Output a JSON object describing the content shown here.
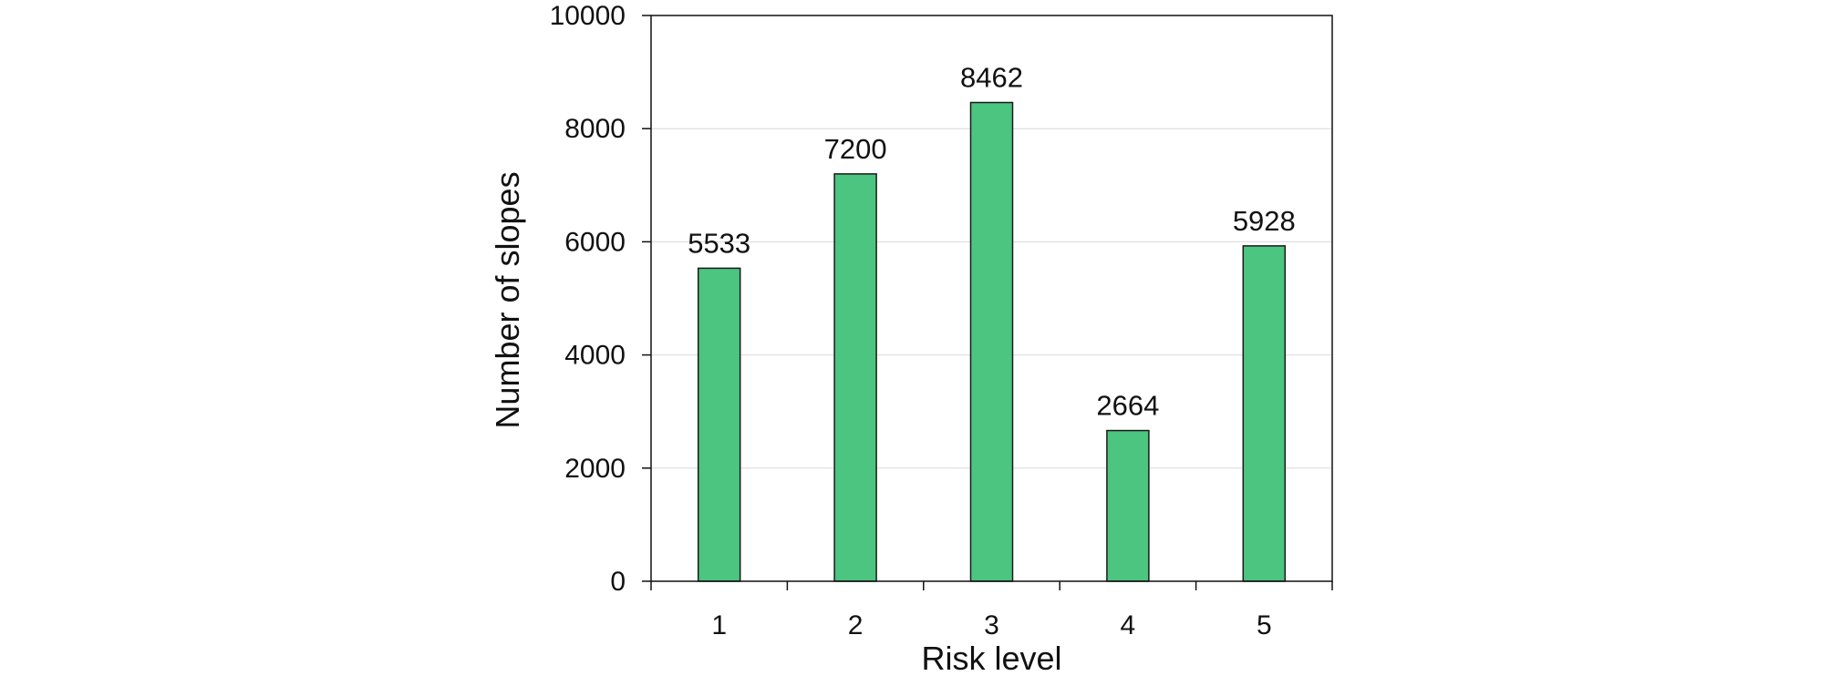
{
  "chart_data": {
    "type": "bar",
    "title": "",
    "xlabel": "Risk level",
    "ylabel": "Number of slopes",
    "categories": [
      "1",
      "2",
      "3",
      "4",
      "5"
    ],
    "values": [
      5533,
      7200,
      8462,
      2664,
      5928
    ],
    "data_labels": [
      "5533",
      "7200",
      "8462",
      "2664",
      "5928"
    ],
    "ylim": [
      0,
      10000
    ],
    "yticks": [
      0,
      2000,
      4000,
      6000,
      8000,
      10000
    ],
    "ytick_labels": [
      "0",
      "2000",
      "4000",
      "6000",
      "8000",
      "10000"
    ],
    "grid": true,
    "legend": false,
    "bar_color": "#4BC57F",
    "bar_edge_color": "#1A1A1A",
    "grid_color": "#D9D9D9"
  }
}
